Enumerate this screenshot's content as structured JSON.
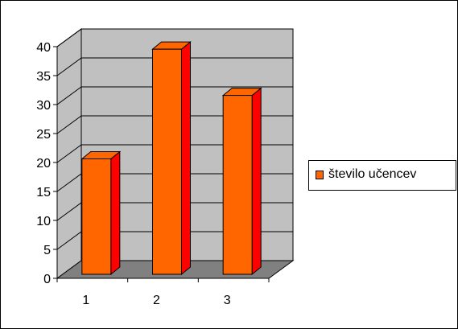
{
  "chart_data": {
    "type": "bar",
    "categories": [
      "1",
      "2",
      "3"
    ],
    "series": [
      {
        "name": "število učencev",
        "values": [
          20,
          39,
          31
        ],
        "color": "#FF6600",
        "side_color": "#FF0000"
      }
    ],
    "ylim": [
      0,
      40
    ],
    "yticks": [
      "0",
      "5",
      "10",
      "15",
      "20",
      "25",
      "30",
      "35",
      "40"
    ],
    "grid": true,
    "legend_position": "right",
    "wall_color": "#C0C0C0",
    "floor_color": "#808080",
    "title": "",
    "xlabel": "",
    "ylabel": ""
  }
}
